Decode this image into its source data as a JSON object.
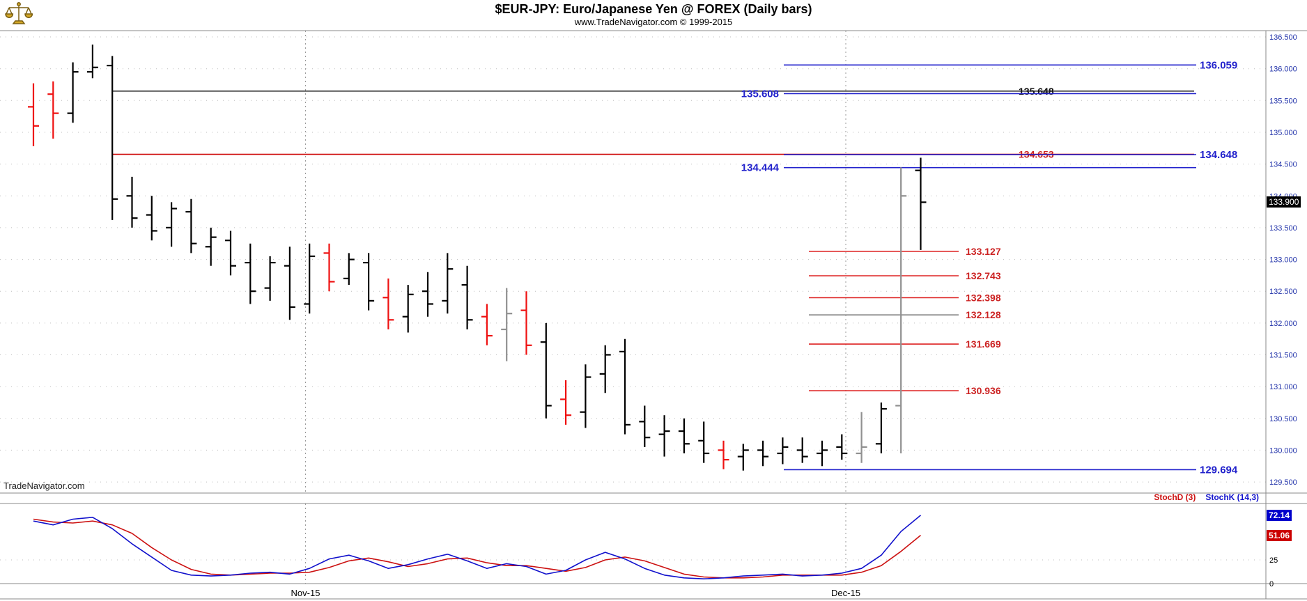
{
  "header": {
    "title": "$EUR-JPY:  Euro/Japanese Yen @ FOREX  (Daily bars)",
    "subtitle": "www.TradeNavigator.com © 1999-2015",
    "logo_icon": "gold-scales-icon"
  },
  "watermark": "TradeNavigator.com",
  "price_axis": {
    "tick_labels": [
      "136.500",
      "136.000",
      "135.500",
      "135.000",
      "134.500",
      "134.000",
      "133.500",
      "133.000",
      "132.500",
      "132.000",
      "131.500",
      "131.000",
      "130.500",
      "130.000",
      "129.500"
    ],
    "current_price_label": "133.900",
    "label_color": "#2233aa"
  },
  "stoch_panel": {
    "d_label": "StochD (3)",
    "k_label": "StochK (14,3)",
    "k_value": "72.14",
    "d_value": "51.06",
    "tick_labels": [
      "25",
      "0"
    ]
  },
  "chart_data": {
    "type": "ohlc-bar",
    "symbol": "$EUR-JPY",
    "title": "$EUR-JPY:  Euro/Japanese Yen @ FOREX  (Daily bars)",
    "ylim": [
      129.35,
      136.6
    ],
    "grid": "dotted",
    "bar_colors": {
      "black": "#000000",
      "red": "#ee1111",
      "gray": "#909090"
    },
    "bars": [
      {
        "color": "red",
        "o": 135.4,
        "h": 135.77,
        "l": 134.78,
        "c": 135.1
      },
      {
        "color": "red",
        "o": 135.6,
        "h": 135.8,
        "l": 134.9,
        "c": 135.3
      },
      {
        "color": "black",
        "o": 135.3,
        "h": 136.1,
        "l": 135.15,
        "c": 135.95
      },
      {
        "color": "black",
        "o": 135.95,
        "h": 136.38,
        "l": 135.85,
        "c": 136.02
      },
      {
        "color": "black",
        "o": 136.05,
        "h": 136.2,
        "l": 133.62,
        "c": 133.95
      },
      {
        "color": "black",
        "o": 134.0,
        "h": 134.3,
        "l": 133.5,
        "c": 133.65
      },
      {
        "color": "black",
        "o": 133.7,
        "h": 134.0,
        "l": 133.3,
        "c": 133.45
      },
      {
        "color": "black",
        "o": 133.5,
        "h": 133.9,
        "l": 133.2,
        "c": 133.8
      },
      {
        "color": "black",
        "o": 133.75,
        "h": 133.95,
        "l": 133.1,
        "c": 133.25
      },
      {
        "color": "black",
        "o": 133.2,
        "h": 133.5,
        "l": 132.9,
        "c": 133.35
      },
      {
        "color": "black",
        "o": 133.3,
        "h": 133.45,
        "l": 132.75,
        "c": 132.9
      },
      {
        "color": "black",
        "o": 132.95,
        "h": 133.25,
        "l": 132.3,
        "c": 132.5
      },
      {
        "color": "black",
        "o": 132.55,
        "h": 133.05,
        "l": 132.35,
        "c": 132.95
      },
      {
        "color": "black",
        "o": 132.9,
        "h": 133.2,
        "l": 132.05,
        "c": 132.25
      },
      {
        "color": "black",
        "o": 132.3,
        "h": 133.25,
        "l": 132.15,
        "c": 133.05
      },
      {
        "color": "red",
        "o": 133.1,
        "h": 133.25,
        "l": 132.5,
        "c": 132.65
      },
      {
        "color": "black",
        "o": 132.7,
        "h": 133.1,
        "l": 132.6,
        "c": 133.0
      },
      {
        "color": "black",
        "o": 132.95,
        "h": 133.1,
        "l": 132.2,
        "c": 132.35
      },
      {
        "color": "red",
        "o": 132.4,
        "h": 132.7,
        "l": 131.9,
        "c": 132.05
      },
      {
        "color": "black",
        "o": 132.1,
        "h": 132.6,
        "l": 131.85,
        "c": 132.45
      },
      {
        "color": "black",
        "o": 132.5,
        "h": 132.8,
        "l": 132.1,
        "c": 132.3
      },
      {
        "color": "black",
        "o": 132.35,
        "h": 133.1,
        "l": 132.15,
        "c": 132.85
      },
      {
        "color": "black",
        "o": 132.6,
        "h": 132.9,
        "l": 131.9,
        "c": 132.05
      },
      {
        "color": "red",
        "o": 132.1,
        "h": 132.3,
        "l": 131.65,
        "c": 131.8
      },
      {
        "color": "gray",
        "o": 131.9,
        "h": 132.55,
        "l": 131.4,
        "c": 132.15
      },
      {
        "color": "red",
        "o": 132.2,
        "h": 132.5,
        "l": 131.5,
        "c": 131.65
      },
      {
        "color": "black",
        "o": 131.7,
        "h": 132.0,
        "l": 130.5,
        "c": 130.7
      },
      {
        "color": "red",
        "o": 130.8,
        "h": 131.1,
        "l": 130.4,
        "c": 130.55
      },
      {
        "color": "black",
        "o": 130.6,
        "h": 131.35,
        "l": 130.35,
        "c": 131.15
      },
      {
        "color": "black",
        "o": 131.2,
        "h": 131.65,
        "l": 130.9,
        "c": 131.5
      },
      {
        "color": "black",
        "o": 131.55,
        "h": 131.75,
        "l": 130.25,
        "c": 130.4
      },
      {
        "color": "black",
        "o": 130.45,
        "h": 130.7,
        "l": 130.05,
        "c": 130.2
      },
      {
        "color": "black",
        "o": 130.25,
        "h": 130.55,
        "l": 129.9,
        "c": 130.3
      },
      {
        "color": "black",
        "o": 130.3,
        "h": 130.5,
        "l": 129.95,
        "c": 130.1
      },
      {
        "color": "black",
        "o": 130.15,
        "h": 130.45,
        "l": 129.8,
        "c": 129.95
      },
      {
        "color": "red",
        "o": 130.0,
        "h": 130.15,
        "l": 129.7,
        "c": 129.85
      },
      {
        "color": "black",
        "o": 129.9,
        "h": 130.1,
        "l": 129.68,
        "c": 130.0
      },
      {
        "color": "black",
        "o": 130.0,
        "h": 130.15,
        "l": 129.75,
        "c": 129.9
      },
      {
        "color": "black",
        "o": 129.95,
        "h": 130.2,
        "l": 129.78,
        "c": 130.05
      },
      {
        "color": "black",
        "o": 130.0,
        "h": 130.2,
        "l": 129.8,
        "c": 129.9
      },
      {
        "color": "black",
        "o": 129.95,
        "h": 130.15,
        "l": 129.75,
        "c": 130.0
      },
      {
        "color": "black",
        "o": 130.05,
        "h": 130.25,
        "l": 129.85,
        "c": 129.95
      },
      {
        "color": "gray",
        "o": 129.95,
        "h": 130.6,
        "l": 129.8,
        "c": 130.05
      },
      {
        "color": "black",
        "o": 130.1,
        "h": 130.75,
        "l": 129.95,
        "c": 130.65
      },
      {
        "color": "gray",
        "o": 130.7,
        "h": 134.45,
        "l": 129.95,
        "c": 134.0
      },
      {
        "color": "black",
        "o": 134.4,
        "h": 134.6,
        "l": 133.15,
        "c": 133.9
      }
    ],
    "x_gridlines": [
      {
        "label": "Nov-15",
        "bar": 13.8
      },
      {
        "label": "Dec-15",
        "bar": 41.2
      }
    ],
    "h_lines": [
      {
        "price": 136.059,
        "label": "136.059",
        "line_color": "#2222cc",
        "label_color": "#2222cc",
        "span": "right",
        "label_pos": "far_right"
      },
      {
        "price": 135.648,
        "label": "135.648",
        "line_color": "#333333",
        "label_color": "#111111",
        "span": "full",
        "label_pos": "mid"
      },
      {
        "price": 135.608,
        "label": "135.608",
        "line_color": "#2222cc",
        "label_color": "#2222cc",
        "span": "right",
        "label_pos": "left"
      },
      {
        "price": 134.653,
        "label": "134.653",
        "line_color": "#cc0000",
        "label_color": "#cc2222",
        "span": "full",
        "label_pos": "mid"
      },
      {
        "price": 134.648,
        "label": "134.648",
        "line_color": "#2222cc",
        "label_color": "#2222cc",
        "span": "right",
        "label_pos": "far_right"
      },
      {
        "price": 134.444,
        "label": "134.444",
        "line_color": "#2222cc",
        "label_color": "#2222cc",
        "span": "right",
        "label_pos": "left"
      },
      {
        "price": 133.127,
        "label": "133.127",
        "line_color": "#dd2222",
        "label_color": "#cc2222",
        "span": "short",
        "label_pos": "short_right"
      },
      {
        "price": 132.743,
        "label": "132.743",
        "line_color": "#dd2222",
        "label_color": "#cc2222",
        "span": "short",
        "label_pos": "short_right"
      },
      {
        "price": 132.398,
        "label": "132.398",
        "line_color": "#dd2222",
        "label_color": "#cc2222",
        "span": "short",
        "label_pos": "short_right"
      },
      {
        "price": 132.128,
        "label": "132.128",
        "line_color": "#808080",
        "label_color": "#cc2222",
        "span": "short",
        "label_pos": "short_right"
      },
      {
        "price": 131.669,
        "label": "131.669",
        "line_color": "#dd2222",
        "label_color": "#cc2222",
        "span": "short",
        "label_pos": "short_right"
      },
      {
        "price": 130.936,
        "label": "130.936",
        "line_color": "#dd2222",
        "label_color": "#cc2222",
        "span": "short",
        "label_pos": "short_right"
      },
      {
        "price": 129.694,
        "label": "129.694",
        "line_color": "#2222cc",
        "label_color": "#2222cc",
        "span": "right",
        "label_pos": "far_right"
      }
    ],
    "current_price": 133.9,
    "stoch": {
      "type": "line",
      "range": [
        0,
        100
      ],
      "ticks": [
        {
          "label": "25",
          "value": 25
        },
        {
          "label": "0",
          "value": 0
        }
      ],
      "series": [
        {
          "name": "StochK (14,3)",
          "color": "#1111cc",
          "last_value": 72.14,
          "values": [
            66,
            62,
            68,
            70,
            58,
            42,
            28,
            14,
            9,
            8,
            9,
            11,
            12,
            10,
            16,
            26,
            30,
            24,
            16,
            20,
            26,
            31,
            24,
            16,
            21,
            18,
            10,
            14,
            25,
            33,
            26,
            16,
            9,
            6,
            5,
            6,
            8,
            9,
            10,
            8,
            9,
            11,
            16,
            30,
            55,
            72.14
          ]
        },
        {
          "name": "StochD (3)",
          "color": "#cc1111",
          "last_value": 51.06,
          "values": [
            68,
            65,
            64,
            66,
            62,
            53,
            38,
            25,
            15,
            10,
            9,
            10,
            11,
            11,
            12,
            17,
            24,
            27,
            23,
            18,
            21,
            26,
            27,
            22,
            19,
            19,
            16,
            13,
            17,
            25,
            28,
            24,
            17,
            10,
            7,
            6,
            6,
            7,
            9,
            9,
            9,
            9,
            12,
            19,
            34,
            51.06
          ]
        }
      ]
    }
  }
}
